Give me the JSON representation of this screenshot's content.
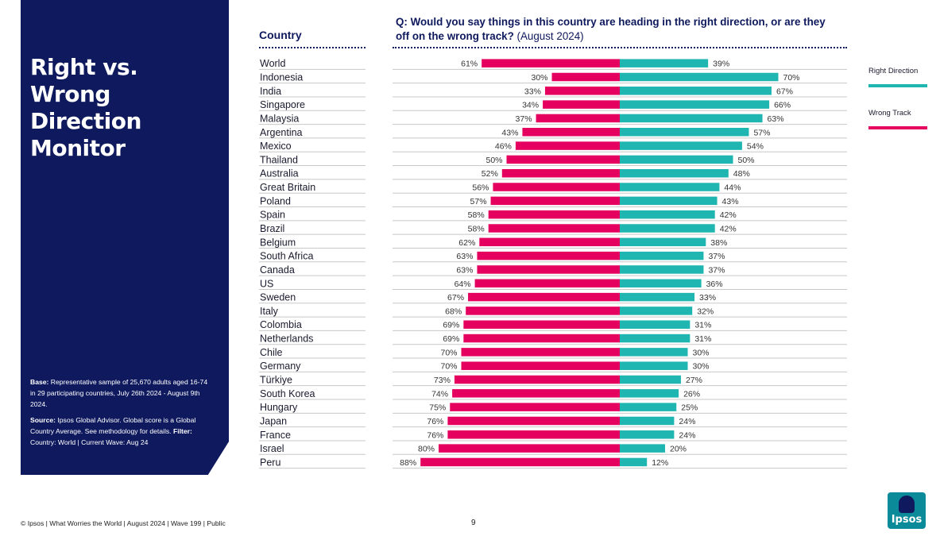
{
  "side": {
    "title": "Right vs.\nWrong Direction\nMonitor",
    "base_label": "Base:",
    "base_text": " Representative sample of 25,670 adults aged 16-74 in 29 participating countries, July 26th 2024 - August 9th 2024.",
    "source_label": "Source:",
    "source_text": " Ipsos Global Advisor. Global score is a Global Country Average. See methodology for details. ",
    "filter_label": "Filter:",
    "filter_text": " Country: World | Current Wave: Aug 24"
  },
  "header": {
    "country_col": "Country",
    "question": "Q: Would you say things in this country are heading in the right direction, or are they off on the wrong track?",
    "question_date": " (August 2024)"
  },
  "legend": {
    "right": "Right Direction",
    "wrong": "Wrong Track"
  },
  "colors": {
    "right": "#1fb5b1",
    "wrong": "#e5005f",
    "panel": "#0f1a5e"
  },
  "chart_data": {
    "type": "bar",
    "orientation": "horizontal-diverging",
    "value_format": "percent",
    "categories": [
      "World",
      "Indonesia",
      "India",
      "Singapore",
      "Malaysia",
      "Argentina",
      "Mexico",
      "Thailand",
      "Australia",
      "Great Britain",
      "Poland",
      "Spain",
      "Brazil",
      "Belgium",
      "South Africa",
      "Canada",
      "US",
      "Sweden",
      "Italy",
      "Colombia",
      "Netherlands",
      "Chile",
      "Germany",
      "Türkiye",
      "South Korea",
      "Hungary",
      "Japan",
      "France",
      "Israel",
      "Peru"
    ],
    "series": [
      {
        "name": "Wrong Track",
        "values": [
          61,
          30,
          33,
          34,
          37,
          43,
          46,
          50,
          52,
          56,
          57,
          58,
          58,
          62,
          63,
          63,
          64,
          67,
          68,
          69,
          69,
          70,
          70,
          73,
          74,
          75,
          76,
          76,
          80,
          88
        ]
      },
      {
        "name": "Right Direction",
        "values": [
          39,
          70,
          67,
          66,
          63,
          57,
          54,
          50,
          48,
          44,
          43,
          42,
          42,
          38,
          37,
          37,
          36,
          33,
          32,
          31,
          31,
          30,
          30,
          27,
          26,
          25,
          24,
          24,
          20,
          12
        ]
      }
    ]
  },
  "footer": {
    "text": "© Ipsos | What Worries the World | August 2024 | Wave 199 | Public",
    "page": "9",
    "logo": "Ipsos"
  }
}
